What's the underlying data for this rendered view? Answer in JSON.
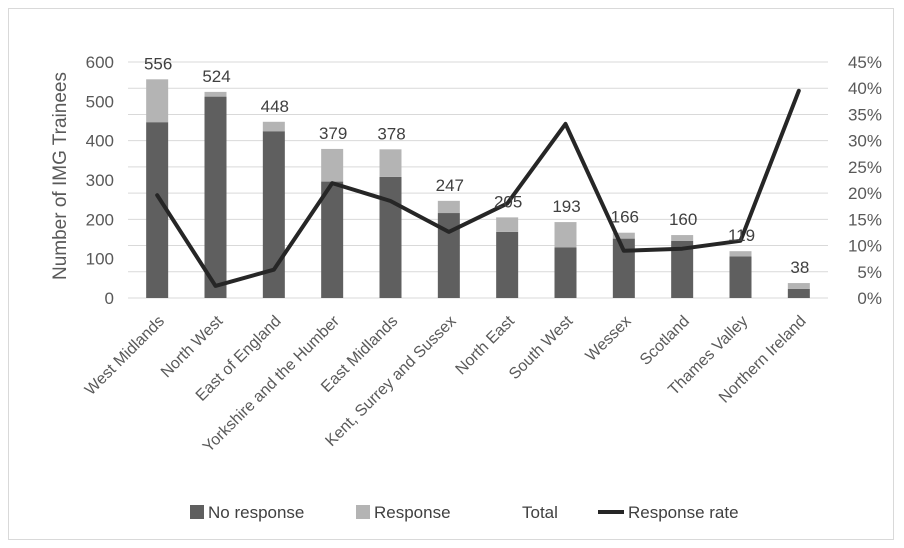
{
  "chart_data": {
    "type": "bar",
    "categories": [
      "West Midlands",
      "North West",
      "East of England",
      "Yorkshire and the Humber",
      "East Midlands",
      "Kent, Surrey and Sussex",
      "North East",
      "South West",
      "Wessex",
      "Scotland",
      "Thames Valley",
      "Northern Ireland"
    ],
    "series": [
      {
        "name": "No response",
        "kind": "stacked-bar",
        "axis": "left",
        "color": "#5f5f5f",
        "values": [
          447,
          512,
          424,
          296,
          308,
          216,
          168,
          129,
          151,
          145,
          106,
          23
        ]
      },
      {
        "name": "Response",
        "kind": "stacked-bar",
        "axis": "left",
        "color": "#b4b4b4",
        "values": [
          109,
          12,
          24,
          83,
          70,
          31,
          37,
          64,
          15,
          15,
          13,
          15
        ]
      },
      {
        "name": "Total",
        "kind": "data-labels",
        "axis": "left",
        "values": [
          556,
          524,
          448,
          379,
          378,
          247,
          205,
          193,
          166,
          160,
          119,
          38
        ]
      },
      {
        "name": "Response rate",
        "kind": "line",
        "axis": "right",
        "color": "#262626",
        "values": [
          0.196,
          0.023,
          0.054,
          0.219,
          0.185,
          0.126,
          0.18,
          0.332,
          0.09,
          0.094,
          0.109,
          0.395
        ]
      }
    ],
    "left_axis": {
      "label": "Number of IMG Trainees",
      "min": 0,
      "max": 600,
      "step": 100,
      "ticks": [
        "0",
        "100",
        "200",
        "300",
        "400",
        "500",
        "600"
      ]
    },
    "right_axis": {
      "label": "",
      "min": 0,
      "max": 0.45,
      "step": 0.05,
      "ticks": [
        "0%",
        "5%",
        "10%",
        "15%",
        "20%",
        "25%",
        "30%",
        "35%",
        "40%",
        "45%"
      ]
    },
    "xlabel": "",
    "grid": true,
    "legend": {
      "position": "bottom",
      "items": [
        {
          "label": "No response",
          "symbol": "square",
          "color": "#5f5f5f"
        },
        {
          "label": "Response",
          "symbol": "square",
          "color": "#b4b4b4"
        },
        {
          "label": "Total",
          "symbol": "none",
          "color": ""
        },
        {
          "label": "Response rate",
          "symbol": "line",
          "color": "#262626"
        }
      ]
    }
  }
}
